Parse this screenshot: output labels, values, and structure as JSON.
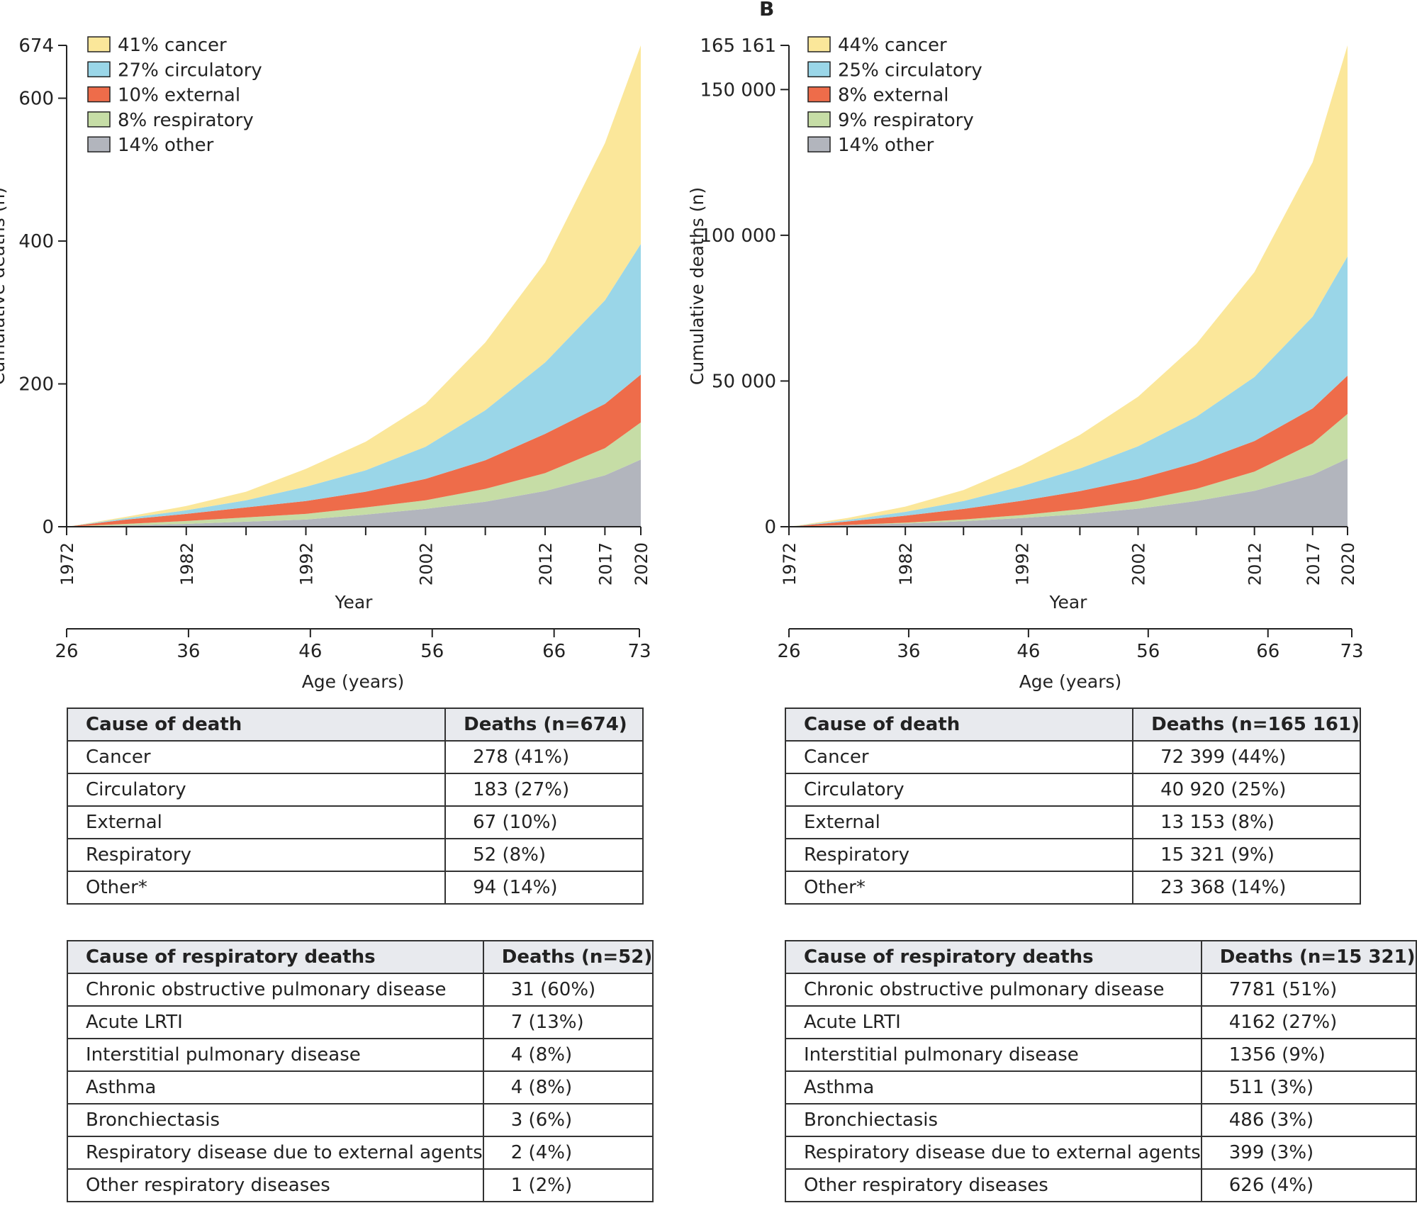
{
  "panels": {
    "b": {
      "letter": "B"
    }
  },
  "chart_data": [
    {
      "type": "area",
      "stacked": true,
      "panel": "A",
      "x": [
        1972,
        1977,
        1982,
        1987,
        1992,
        1997,
        2002,
        2007,
        2012,
        2017,
        2020
      ],
      "xtick_values": [
        1972,
        1982,
        1992,
        2002,
        2012,
        2017,
        2020
      ],
      "xtick_labels": [
        "1972",
        "1982",
        "1992",
        "2002",
        "2012",
        "2017",
        "2020"
      ],
      "ylim": [
        0,
        674
      ],
      "ytick_values": [
        0,
        200,
        400,
        600,
        674
      ],
      "ytick_labels": [
        "0",
        "200",
        "400",
        "600",
        "674"
      ],
      "ylabel": "Cumulative deaths (n)",
      "xlabel": "Year",
      "age_axis": {
        "label": "Age (years)",
        "values": [
          26,
          36,
          46,
          56,
          66,
          73
        ],
        "labels": [
          "26",
          "36",
          "46",
          "56",
          "66",
          "73"
        ]
      },
      "series": [
        {
          "name": "other",
          "legend": "14% other",
          "color": "#b2b5bd",
          "values": [
            0,
            2,
            4,
            7,
            10,
            17,
            25,
            35,
            50,
            72,
            94
          ]
        },
        {
          "name": "respiratory",
          "legend": "8% respiratory",
          "color": "#c6dda6",
          "values": [
            0,
            2,
            4,
            6,
            8,
            10,
            12,
            18,
            25,
            38,
            52
          ]
        },
        {
          "name": "external",
          "legend": "10% external",
          "color": "#ee6c4a",
          "values": [
            0,
            6,
            10,
            14,
            18,
            22,
            30,
            40,
            55,
            62,
            67
          ]
        },
        {
          "name": "circulatory",
          "legend": "27% circulatory",
          "color": "#9ad6e8",
          "values": [
            0,
            2,
            5,
            10,
            20,
            30,
            45,
            70,
            100,
            145,
            183
          ]
        },
        {
          "name": "cancer",
          "legend": "41% cancer",
          "color": "#fbe79a",
          "values": [
            0,
            2,
            6,
            12,
            25,
            40,
            60,
            95,
            140,
            220,
            278
          ]
        }
      ]
    },
    {
      "type": "area",
      "stacked": true,
      "panel": "B",
      "x": [
        1972,
        1977,
        1982,
        1987,
        1992,
        1997,
        2002,
        2007,
        2012,
        2017,
        2020
      ],
      "xtick_values": [
        1972,
        1982,
        1992,
        2002,
        2012,
        2017,
        2020
      ],
      "xtick_labels": [
        "1972",
        "1982",
        "1992",
        "2002",
        "2012",
        "2017",
        "2020"
      ],
      "ylim": [
        0,
        165161
      ],
      "ytick_values": [
        0,
        50000,
        100000,
        150000,
        165161
      ],
      "ytick_labels": [
        "0",
        "50 000",
        "100 000",
        "150 000",
        "165 161"
      ],
      "ylabel": "Cumulative deaths (n)",
      "xlabel": "Year",
      "age_axis": {
        "label": "Age (years)",
        "values": [
          26,
          36,
          46,
          56,
          66,
          73
        ],
        "labels": [
          "26",
          "36",
          "46",
          "56",
          "66",
          "73"
        ]
      },
      "series": [
        {
          "name": "other",
          "legend": "14% other",
          "color": "#b2b5bd",
          "values": [
            0,
            500,
            1100,
            1900,
            3000,
            4300,
            6200,
            8800,
            12300,
            17800,
            23368
          ]
        },
        {
          "name": "respiratory",
          "legend": "9% respiratory",
          "color": "#c6dda6",
          "values": [
            0,
            100,
            300,
            600,
            1000,
            1700,
            2600,
            4200,
            6600,
            10800,
            15321
          ]
        },
        {
          "name": "external",
          "legend": "8% external",
          "color": "#ee6c4a",
          "values": [
            0,
            1200,
            2400,
            3600,
            4900,
            6200,
            7600,
            9000,
            10500,
            12000,
            13153
          ]
        },
        {
          "name": "circulatory",
          "legend": "25% circulatory",
          "color": "#9ad6e8",
          "values": [
            0,
            500,
            1300,
            2700,
            5000,
            7800,
            11200,
            15700,
            22000,
            31500,
            40920
          ]
        },
        {
          "name": "cancer",
          "legend": "44% cancer",
          "color": "#fbe79a",
          "values": [
            0,
            700,
            1800,
            3800,
            7200,
            11500,
            17000,
            25000,
            36000,
            53000,
            72399
          ]
        }
      ]
    }
  ],
  "tables": {
    "a_cause": {
      "header": [
        "Cause of death",
        "Deaths (n=674)"
      ],
      "rows": [
        [
          "Cancer",
          "278 (41%)"
        ],
        [
          "Circulatory",
          "183 (27%)"
        ],
        [
          "External",
          "67 (10%)"
        ],
        [
          "Respiratory",
          "52 (8%)"
        ],
        [
          "Other*",
          "94 (14%)"
        ]
      ]
    },
    "a_resp": {
      "header": [
        "Cause of respiratory deaths",
        "Deaths (n=52)"
      ],
      "rows": [
        [
          "Chronic obstructive pulmonary disease",
          "31 (60%)"
        ],
        [
          "Acute LRTI",
          "7 (13%)"
        ],
        [
          "Interstitial pulmonary disease",
          "4 (8%)"
        ],
        [
          "Asthma",
          "4 (8%)"
        ],
        [
          "Bronchiectasis",
          "3 (6%)"
        ],
        [
          "Respiratory disease due to external agents",
          "2 (4%)"
        ],
        [
          "Other respiratory diseases",
          "1 (2%)"
        ]
      ]
    },
    "b_cause": {
      "header": [
        "Cause of death",
        "Deaths (n=165 161)"
      ],
      "rows": [
        [
          "Cancer",
          "72 399 (44%)"
        ],
        [
          "Circulatory",
          "40 920 (25%)"
        ],
        [
          "External",
          "13 153 (8%)"
        ],
        [
          "Respiratory",
          "15 321 (9%)"
        ],
        [
          "Other*",
          "23 368 (14%)"
        ]
      ]
    },
    "b_resp": {
      "header": [
        "Cause of respiratory deaths",
        "Deaths (n=15 321)"
      ],
      "rows": [
        [
          "Chronic obstructive pulmonary disease",
          "7781 (51%)"
        ],
        [
          "Acute LRTI",
          "4162 (27%)"
        ],
        [
          "Interstitial pulmonary disease",
          "1356 (9%)"
        ],
        [
          "Asthma",
          "511 (3%)"
        ],
        [
          "Bronchiectasis",
          "486 (3%)"
        ],
        [
          "Respiratory disease due to external agents",
          "399 (3%)"
        ],
        [
          "Other respiratory diseases",
          "626 (4%)"
        ]
      ]
    }
  }
}
